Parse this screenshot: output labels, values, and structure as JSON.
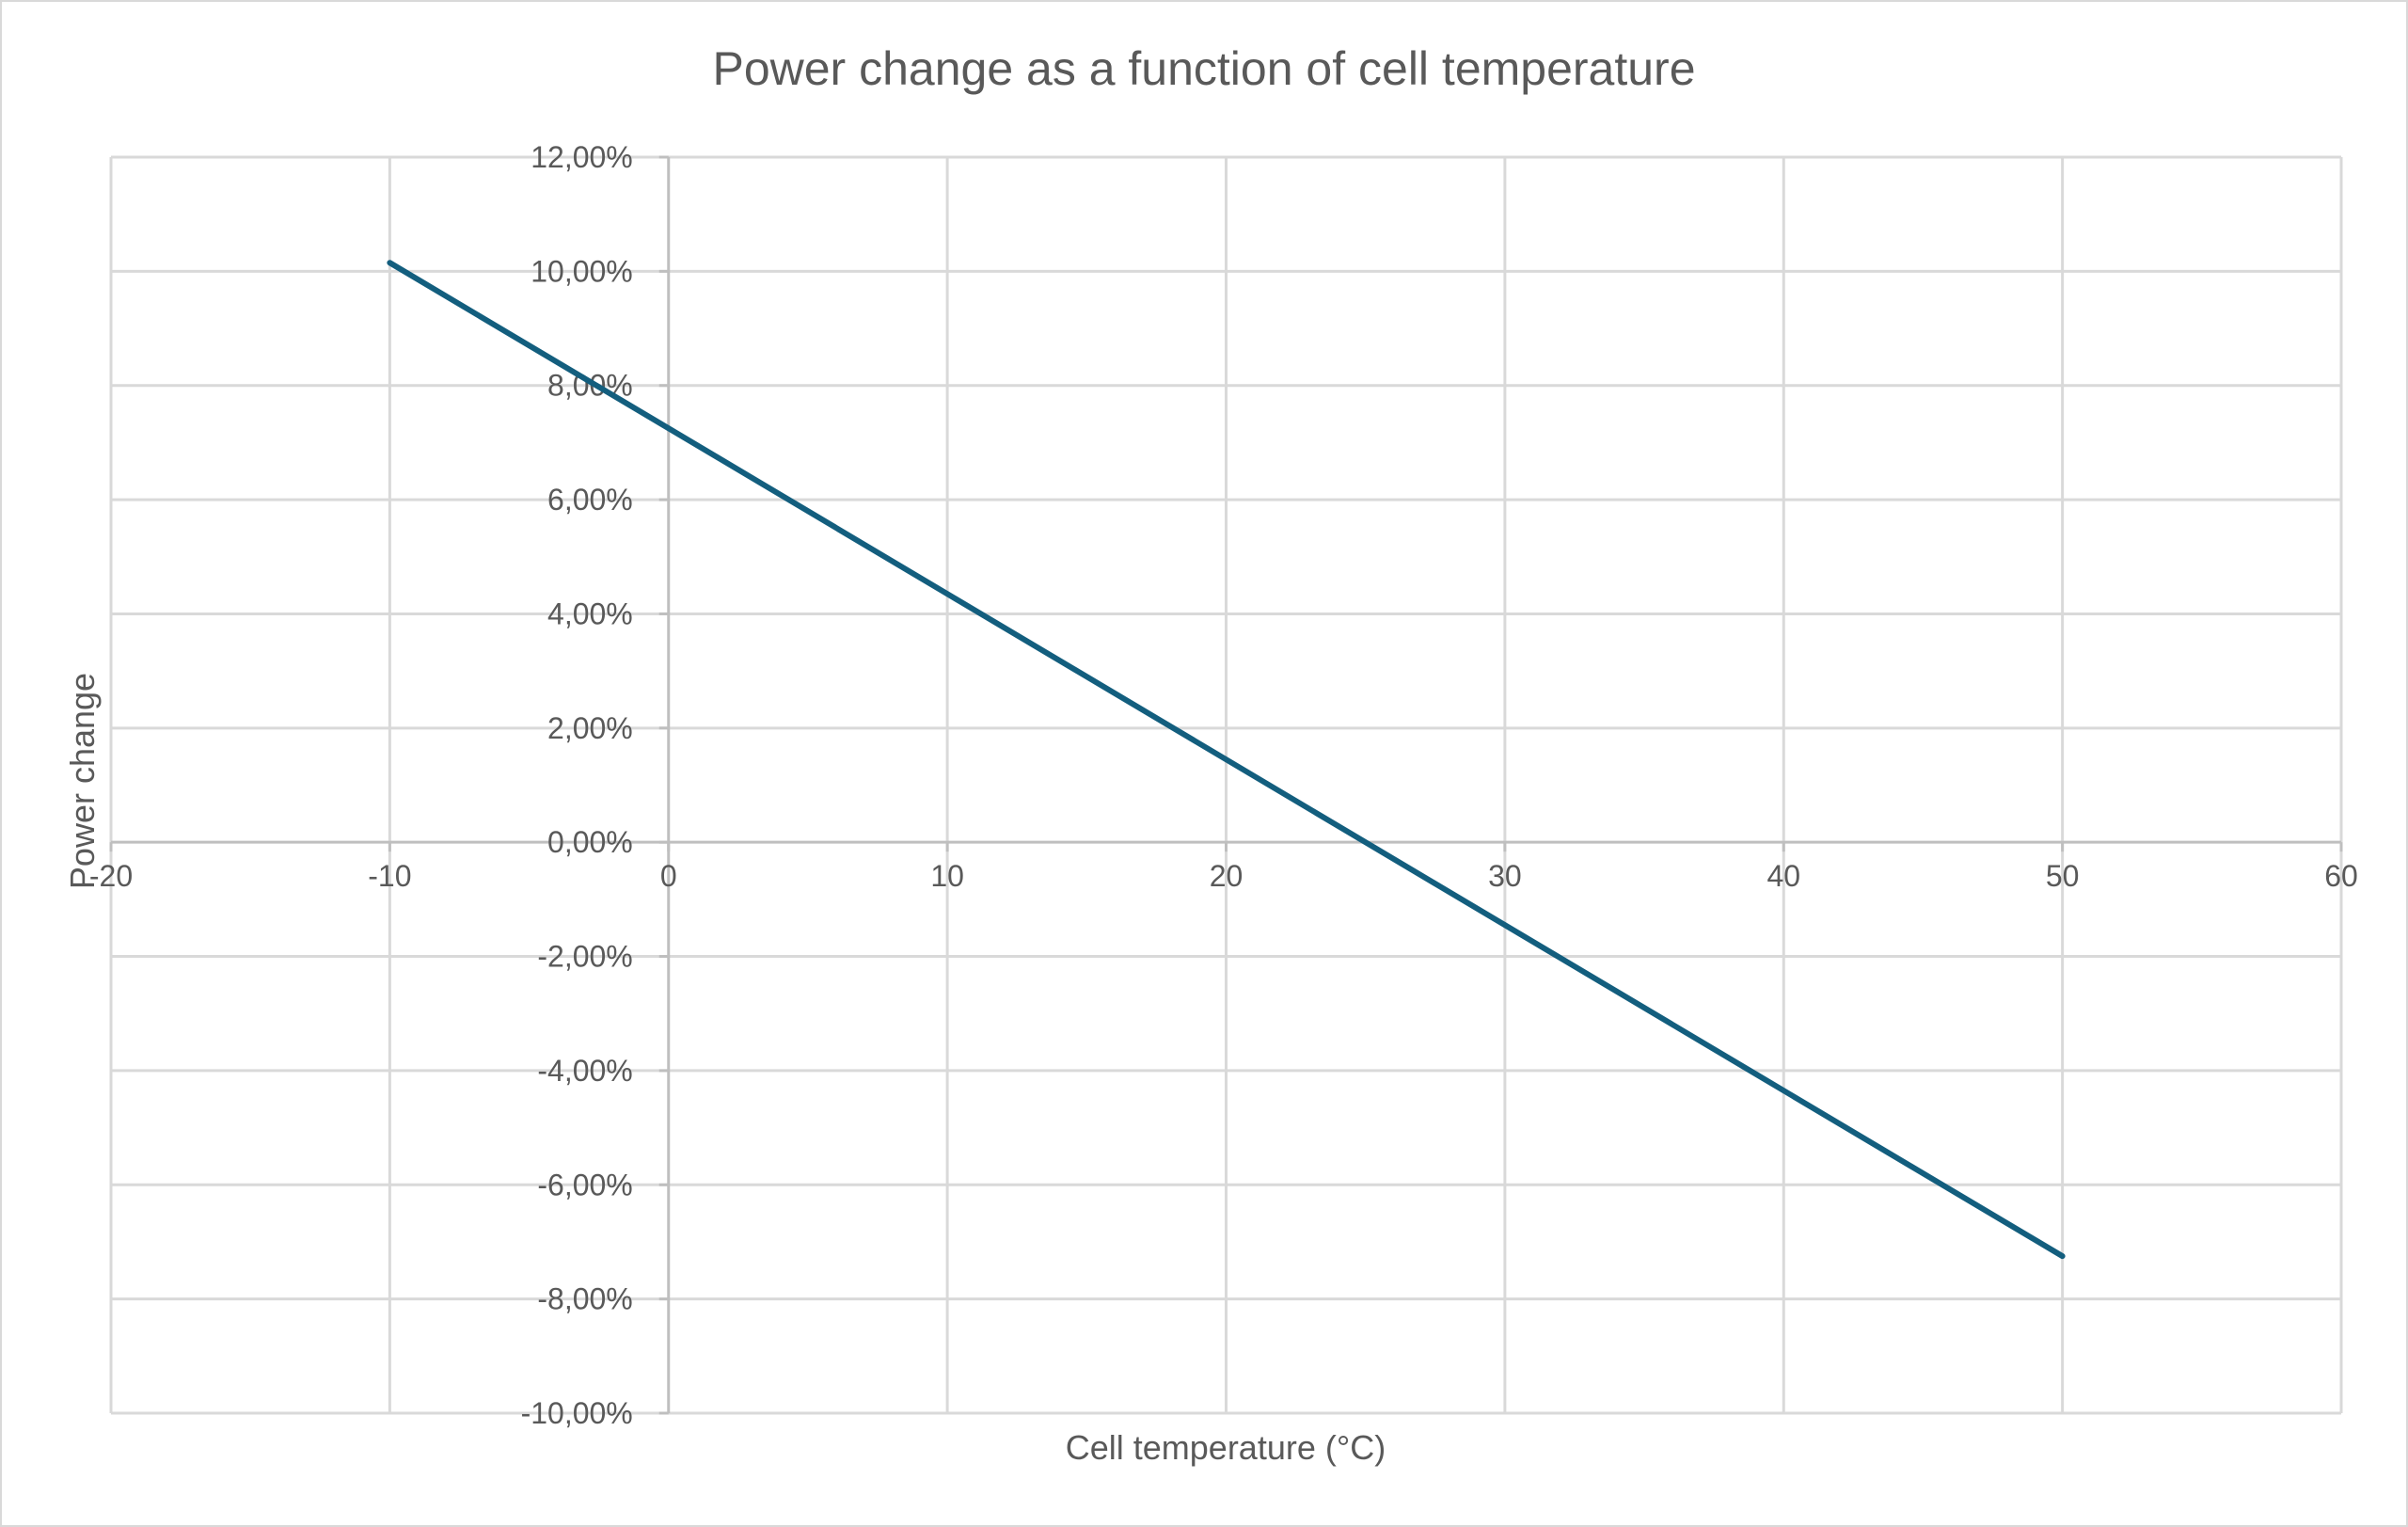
{
  "chart_data": {
    "type": "line",
    "title": "Power change as a function of cell temperature",
    "xlabel": "Cell temperature (°C)",
    "ylabel": "Power change",
    "xlim": [
      -20,
      60
    ],
    "ylim": [
      -0.1,
      0.12
    ],
    "xticks": [
      -20,
      -10,
      0,
      10,
      20,
      30,
      40,
      50,
      60
    ],
    "xtick_labels": [
      "-20",
      "-10",
      "0",
      "10",
      "20",
      "30",
      "40",
      "50",
      "60"
    ],
    "yticks": [
      0.12,
      0.1,
      0.08,
      0.06,
      0.04,
      0.02,
      0.0,
      -0.02,
      -0.04,
      -0.06,
      -0.08,
      -0.1
    ],
    "ytick_labels": [
      "12,00%",
      "10,00%",
      "8,00%",
      "6,00%",
      "4,00%",
      "2,00%",
      "0,00%",
      "-2,00%",
      "-4,00%",
      "-6,00%",
      "-8,00%",
      "-10,00%"
    ],
    "grid": true,
    "legend": "none",
    "series": [
      {
        "name": "Power change",
        "color": "#135E7E",
        "x": [
          -10,
          50
        ],
        "y": [
          0.1015,
          -0.0725
        ]
      }
    ]
  }
}
